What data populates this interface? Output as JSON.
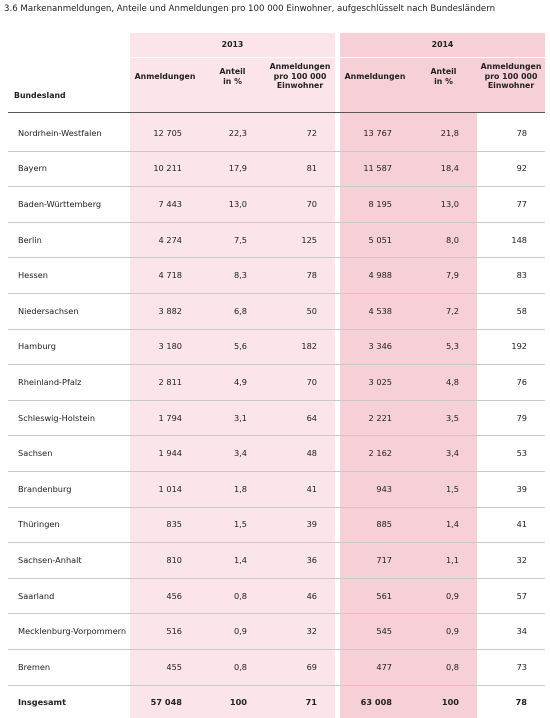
{
  "title": "3.6 Markenanmeldungen, Anteile und Anmeldungen pro 100 000 Einwohner, aufgeschlüsselt nach Bundesländern",
  "table": {
    "first_header": "Bundesland",
    "groups": [
      {
        "label": "2013",
        "columns": [
          "Anmeldungen",
          "Anteil in %",
          "Anmeldungen pro 100 000 Einwohner"
        ]
      },
      {
        "label": "2014",
        "columns": [
          "Anmeldungen",
          "Anteil in %",
          "Anmeldungen pro 100 000 Einwohner"
        ]
      }
    ],
    "rows": [
      [
        "Nordrhein-Westfalen",
        "12 705",
        "22,3",
        "72",
        "13 767",
        "21,8",
        "78"
      ],
      [
        "Bayern",
        "10 211",
        "17,9",
        "81",
        "11 587",
        "18,4",
        "92"
      ],
      [
        "Baden-Württemberg",
        "7 443",
        "13,0",
        "70",
        "8 195",
        "13,0",
        "77"
      ],
      [
        "Berlin",
        "4 274",
        "7,5",
        "125",
        "5 051",
        "8,0",
        "148"
      ],
      [
        "Hessen",
        "4 718",
        "8,3",
        "78",
        "4 988",
        "7,9",
        "83"
      ],
      [
        "Niedersachsen",
        "3 882",
        "6,8",
        "50",
        "4 538",
        "7,2",
        "58"
      ],
      [
        "Hamburg",
        "3 180",
        "5,6",
        "182",
        "3 346",
        "5,3",
        "192"
      ],
      [
        "Rheinland-Pfalz",
        "2 811",
        "4,9",
        "70",
        "3 025",
        "4,8",
        "76"
      ],
      [
        "Schleswig-Holstein",
        "1 794",
        "3,1",
        "64",
        "2 221",
        "3,5",
        "79"
      ],
      [
        "Sachsen",
        "1 944",
        "3,4",
        "48",
        "2 162",
        "3,4",
        "53"
      ],
      [
        "Brandenburg",
        "1 014",
        "1,8",
        "41",
        "943",
        "1,5",
        "39"
      ],
      [
        "Thüringen",
        "835",
        "1,5",
        "39",
        "885",
        "1,4",
        "41"
      ],
      [
        "Sachsen-Anhalt",
        "810",
        "1,4",
        "36",
        "717",
        "1,1",
        "32"
      ],
      [
        "Saarland",
        "456",
        "0,8",
        "46",
        "561",
        "0,9",
        "57"
      ],
      [
        "Mecklenburg-Vorpommern",
        "516",
        "0,9",
        "32",
        "545",
        "0,9",
        "34"
      ],
      [
        "Bremen",
        "455",
        "0,8",
        "69",
        "477",
        "0,8",
        "73"
      ],
      [
        "Insgesamt",
        "57 048",
        "100",
        "71",
        "63 008",
        "100",
        "78"
      ]
    ]
  }
}
